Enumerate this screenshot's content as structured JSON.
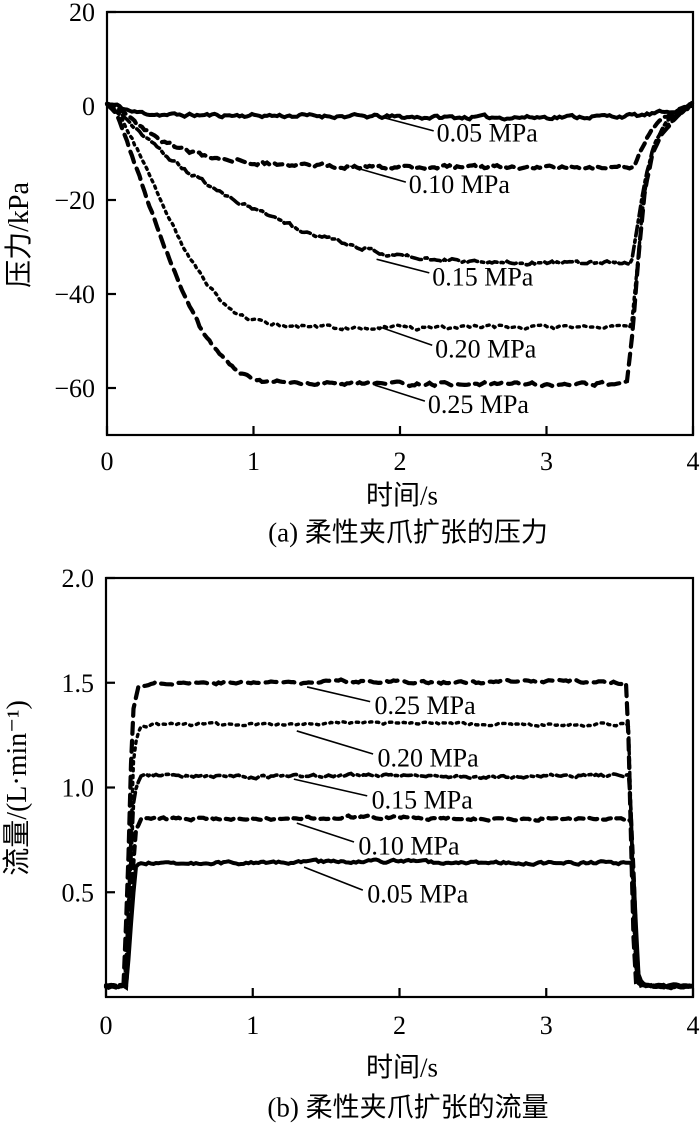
{
  "figure": {
    "background": "#ffffff",
    "ink": "#000000"
  },
  "chart_data": [
    {
      "type": "line",
      "id": "pressure",
      "caption": "(a) 柔性夹爪扩张的压力",
      "xlabel": "时间/s",
      "ylabel": "压力/kPa",
      "xlim": [
        0,
        4
      ],
      "ylim": [
        -70,
        20
      ],
      "grid": false,
      "legend_position": "inline-annotations",
      "xticks": [
        {
          "v": 0,
          "label": "0"
        },
        {
          "v": 1,
          "label": "1"
        },
        {
          "v": 2,
          "label": "2"
        },
        {
          "v": 3,
          "label": "3"
        },
        {
          "v": 4,
          "label": "4"
        }
      ],
      "yticks": [
        {
          "v": 20,
          "label": "20"
        },
        {
          "v": 0,
          "label": "0"
        },
        {
          "v": -20,
          "label": "−20"
        },
        {
          "v": -40,
          "label": "−40"
        },
        {
          "v": -60,
          "label": "−60"
        }
      ],
      "series": [
        {
          "name": "0.05 MPa",
          "pressure_mpa": 0.05,
          "style": "solid",
          "steady_value_kpa": -2,
          "points": [
            [
              0,
              0.4
            ],
            [
              0.06,
              0.1
            ],
            [
              0.18,
              -1.3
            ],
            [
              0.4,
              -1.9
            ],
            [
              0.9,
              -2
            ],
            [
              1.5,
              -2.1
            ],
            [
              2.2,
              -2.4
            ],
            [
              2.9,
              -2.4
            ],
            [
              3.4,
              -2.2
            ],
            [
              3.65,
              -2
            ],
            [
              3.8,
              -1.4
            ],
            [
              3.92,
              -0.5
            ],
            [
              4,
              0.4
            ]
          ]
        },
        {
          "name": "0.10 MPa",
          "pressure_mpa": 0.1,
          "style": "dash",
          "steady_value_kpa": -13,
          "points": [
            [
              0,
              0.4
            ],
            [
              0.08,
              -0.5
            ],
            [
              0.2,
              -4
            ],
            [
              0.35,
              -7
            ],
            [
              0.5,
              -9.2
            ],
            [
              0.7,
              -10.9
            ],
            [
              0.95,
              -12
            ],
            [
              1.3,
              -12.6
            ],
            [
              1.8,
              -12.9
            ],
            [
              2.5,
              -13
            ],
            [
              3.1,
              -12.9
            ],
            [
              3.6,
              -12.9
            ],
            [
              3.66,
              -8.5
            ],
            [
              3.72,
              -4.8
            ],
            [
              3.8,
              -2.6
            ],
            [
              3.9,
              -1.1
            ],
            [
              4,
              0.3
            ]
          ]
        },
        {
          "name": "0.15 MPa",
          "pressure_mpa": 0.15,
          "style": "dashdot",
          "steady_value_kpa": -33,
          "points": [
            [
              0,
              0.4
            ],
            [
              0.08,
              -1
            ],
            [
              0.22,
              -5.5
            ],
            [
              0.38,
              -10
            ],
            [
              0.55,
              -14
            ],
            [
              0.75,
              -18
            ],
            [
              1.0,
              -22
            ],
            [
              1.3,
              -26
            ],
            [
              1.6,
              -29
            ],
            [
              1.9,
              -31.4
            ],
            [
              2.2,
              -32.6
            ],
            [
              2.6,
              -33.2
            ],
            [
              3.1,
              -33.4
            ],
            [
              3.58,
              -33.4
            ],
            [
              3.63,
              -24
            ],
            [
              3.68,
              -14.5
            ],
            [
              3.74,
              -7.8
            ],
            [
              3.82,
              -3.6
            ],
            [
              3.92,
              -1.2
            ],
            [
              4,
              0.3
            ]
          ]
        },
        {
          "name": "0.20 MPa",
          "pressure_mpa": 0.2,
          "style": "dot",
          "steady_value_kpa": -47,
          "points": [
            [
              0,
              0.4
            ],
            [
              0.08,
              -1.5
            ],
            [
              0.22,
              -10
            ],
            [
              0.38,
              -21
            ],
            [
              0.52,
              -30
            ],
            [
              0.68,
              -38
            ],
            [
              0.82,
              -43
            ],
            [
              0.98,
              -45.6
            ],
            [
              1.2,
              -46.6
            ],
            [
              1.5,
              -47
            ],
            [
              2.0,
              -47.2
            ],
            [
              2.6,
              -47
            ],
            [
              3.1,
              -47.2
            ],
            [
              3.58,
              -47
            ],
            [
              3.62,
              -34
            ],
            [
              3.66,
              -20
            ],
            [
              3.71,
              -11
            ],
            [
              3.78,
              -5.6
            ],
            [
              3.88,
              -2.2
            ],
            [
              4,
              0.3
            ]
          ]
        },
        {
          "name": "0.25 MPa",
          "pressure_mpa": 0.25,
          "style": "longdash",
          "steady_value_kpa": -59,
          "points": [
            [
              0,
              0.4
            ],
            [
              0.08,
              -3
            ],
            [
              0.22,
              -15
            ],
            [
              0.38,
              -29
            ],
            [
              0.52,
              -40
            ],
            [
              0.65,
              -48
            ],
            [
              0.78,
              -53.5
            ],
            [
              0.92,
              -57
            ],
            [
              1.08,
              -58.6
            ],
            [
              1.35,
              -59
            ],
            [
              1.9,
              -59.2
            ],
            [
              2.5,
              -59
            ],
            [
              3.0,
              -59.2
            ],
            [
              3.55,
              -59
            ],
            [
              3.59,
              -47
            ],
            [
              3.63,
              -31
            ],
            [
              3.67,
              -18.5
            ],
            [
              3.72,
              -10.5
            ],
            [
              3.79,
              -5.5
            ],
            [
              3.88,
              -2.2
            ],
            [
              4,
              0.3
            ]
          ]
        }
      ],
      "annotations": [
        {
          "text": "0.05 MPa",
          "line": [
            [
              1.82,
              -1.9
            ],
            [
              2.23,
              -5.3
            ]
          ],
          "text_at": [
            2.25,
            -7.5
          ]
        },
        {
          "text": "0.10 MPa",
          "line": [
            [
              1.66,
              -12.8
            ],
            [
              2.04,
              -16.2
            ]
          ],
          "text_at": [
            2.06,
            -18.5
          ]
        },
        {
          "text": "0.15 MPa",
          "line": [
            [
              1.84,
              -32.6
            ],
            [
              2.2,
              -35.5
            ]
          ],
          "text_at": [
            2.22,
            -38.2
          ]
        },
        {
          "text": "0.20 MPa",
          "line": [
            [
              1.86,
              -47.0
            ],
            [
              2.22,
              -50.9
            ]
          ],
          "text_at": [
            2.24,
            -53.5
          ]
        },
        {
          "text": "0.25 MPa",
          "line": [
            [
              1.83,
              -59.4
            ],
            [
              2.17,
              -62.8
            ]
          ],
          "text_at": [
            2.19,
            -65.3
          ]
        }
      ]
    },
    {
      "type": "line",
      "id": "flow",
      "caption": "(b) 柔性夹爪扩张的流量",
      "xlabel": "时间/s",
      "ylabel": "流量/(L·min⁻¹)",
      "xlim": [
        0,
        4
      ],
      "ylim": [
        0,
        2.0
      ],
      "grid": false,
      "legend_position": "inline-annotations",
      "xticks": [
        {
          "v": 0,
          "label": "0"
        },
        {
          "v": 1,
          "label": "1"
        },
        {
          "v": 2,
          "label": "2"
        },
        {
          "v": 3,
          "label": "3"
        },
        {
          "v": 4,
          "label": "4"
        }
      ],
      "yticks": [
        {
          "v": 2.0,
          "label": "2.0"
        },
        {
          "v": 1.5,
          "label": "1.5"
        },
        {
          "v": 1.0,
          "label": "1.0"
        },
        {
          "v": 0.5,
          "label": "0.5"
        }
      ],
      "series": [
        {
          "name": "0.25 MPa",
          "pressure_mpa": 0.25,
          "style": "longdash",
          "steady_value_l_min": 1.5,
          "points": [
            [
              0,
              0.05
            ],
            [
              0.12,
              0.05
            ],
            [
              0.15,
              0.6
            ],
            [
              0.18,
              1.35
            ],
            [
              0.22,
              1.48
            ],
            [
              0.3,
              1.5
            ],
            [
              1.0,
              1.5
            ],
            [
              1.7,
              1.51
            ],
            [
              2.4,
              1.5
            ],
            [
              3.1,
              1.51
            ],
            [
              3.55,
              1.5
            ],
            [
              3.57,
              1.0
            ],
            [
              3.59,
              0.35
            ],
            [
              3.61,
              0.08
            ],
            [
              3.7,
              0.05
            ],
            [
              4,
              0.05
            ]
          ]
        },
        {
          "name": "0.20 MPa",
          "pressure_mpa": 0.2,
          "style": "dot",
          "steady_value_l_min": 1.3,
          "points": [
            [
              0,
              0.05
            ],
            [
              0.13,
              0.05
            ],
            [
              0.16,
              0.55
            ],
            [
              0.19,
              1.18
            ],
            [
              0.23,
              1.29
            ],
            [
              0.3,
              1.3
            ],
            [
              1.0,
              1.3
            ],
            [
              1.8,
              1.31
            ],
            [
              2.6,
              1.3
            ],
            [
              3.56,
              1.3
            ],
            [
              3.58,
              0.8
            ],
            [
              3.6,
              0.25
            ],
            [
              3.62,
              0.07
            ],
            [
              3.72,
              0.05
            ],
            [
              4,
              0.05
            ]
          ]
        },
        {
          "name": "0.15 MPa",
          "pressure_mpa": 0.15,
          "style": "dashdot",
          "steady_value_l_min": 1.05,
          "points": [
            [
              0,
              0.05
            ],
            [
              0.13,
              0.05
            ],
            [
              0.16,
              0.5
            ],
            [
              0.19,
              0.96
            ],
            [
              0.23,
              1.05
            ],
            [
              0.3,
              1.06
            ],
            [
              1.0,
              1.05
            ],
            [
              1.8,
              1.06
            ],
            [
              2.6,
              1.05
            ],
            [
              3.57,
              1.06
            ],
            [
              3.59,
              0.6
            ],
            [
              3.61,
              0.15
            ],
            [
              3.63,
              0.06
            ],
            [
              3.73,
              0.05
            ],
            [
              4,
              0.05
            ]
          ]
        },
        {
          "name": "0.10 MPa",
          "pressure_mpa": 0.1,
          "style": "dash",
          "steady_value_l_min": 0.85,
          "points": [
            [
              0,
              0.05
            ],
            [
              0.14,
              0.05
            ],
            [
              0.17,
              0.45
            ],
            [
              0.2,
              0.8
            ],
            [
              0.24,
              0.85
            ],
            [
              1.0,
              0.85
            ],
            [
              1.8,
              0.86
            ],
            [
              2.6,
              0.85
            ],
            [
              3.58,
              0.85
            ],
            [
              3.6,
              0.5
            ],
            [
              3.62,
              0.12
            ],
            [
              3.64,
              0.06
            ],
            [
              3.74,
              0.05
            ],
            [
              4,
              0.05
            ]
          ]
        },
        {
          "name": "0.05 MPa",
          "pressure_mpa": 0.05,
          "style": "solid",
          "steady_value_l_min": 0.64,
          "points": [
            [
              0,
              0.05
            ],
            [
              0.14,
              0.05
            ],
            [
              0.17,
              0.35
            ],
            [
              0.2,
              0.62
            ],
            [
              0.24,
              0.64
            ],
            [
              1.0,
              0.64
            ],
            [
              1.8,
              0.65
            ],
            [
              2.6,
              0.64
            ],
            [
              3.59,
              0.64
            ],
            [
              3.61,
              0.35
            ],
            [
              3.63,
              0.08
            ],
            [
              3.68,
              0.05
            ],
            [
              4,
              0.05
            ]
          ]
        }
      ],
      "annotations": [
        {
          "text": "0.25 MPa",
          "line": [
            [
              1.37,
              1.48
            ],
            [
              1.8,
              1.41
            ]
          ],
          "text_at": [
            1.83,
            1.35
          ]
        },
        {
          "text": "0.20 MPa",
          "line": [
            [
              1.3,
              1.27
            ],
            [
              1.82,
              1.16
            ]
          ],
          "text_at": [
            1.85,
            1.1
          ]
        },
        {
          "text": "0.15 MPa",
          "line": [
            [
              1.28,
              1.04
            ],
            [
              1.78,
              0.96
            ]
          ],
          "text_at": [
            1.81,
            0.9
          ]
        },
        {
          "text": "0.10 MPa",
          "line": [
            [
              1.3,
              0.83
            ],
            [
              1.69,
              0.74
            ]
          ],
          "text_at": [
            1.72,
            0.68
          ]
        },
        {
          "text": "0.05 MPa",
          "line": [
            [
              1.35,
              0.62
            ],
            [
              1.75,
              0.51
            ]
          ],
          "text_at": [
            1.78,
            0.45
          ]
        }
      ]
    }
  ]
}
